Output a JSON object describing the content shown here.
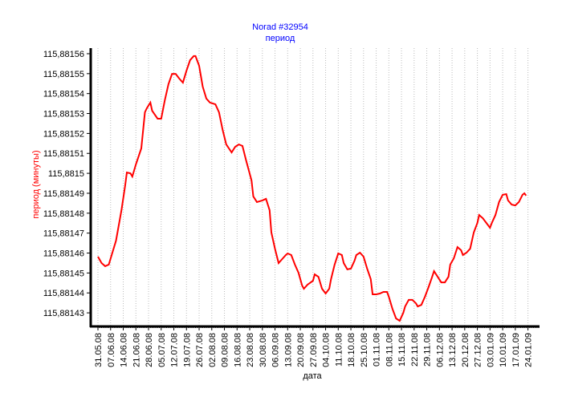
{
  "chart_data": {
    "type": "line",
    "title": "Norad #32954",
    "subtitle": "период",
    "xlabel": "дата",
    "ylabel": "период (минуты)",
    "title_color": "#0000ff",
    "ylabel_color": "#ff0000",
    "line_color": "#ff0000",
    "grid": "vertical dotted",
    "x_unit": "days since 31.05.08",
    "xlim": [
      -4,
      244.4
    ],
    "ylim": [
      115.8814232,
      115.8815628
    ],
    "x_ticks": [
      0,
      7,
      14,
      21,
      28,
      35,
      42,
      49,
      56,
      63,
      70,
      77,
      84,
      91,
      98,
      105,
      112,
      119,
      126,
      133,
      140,
      147,
      154,
      161,
      168,
      175,
      182,
      189,
      196,
      203,
      210,
      217,
      224,
      231,
      238
    ],
    "x_tick_labels": [
      "31.05.08",
      "07.06.08",
      "14.06.08",
      "21.06.08",
      "28.06.08",
      "05.07.08",
      "12.07.08",
      "19.07.08",
      "26.07.08",
      "02.08.08",
      "09.08.08",
      "16.08.08",
      "23.08.08",
      "30.08.08",
      "06.09.08",
      "13.09.08",
      "20.09.08",
      "27.09.08",
      "04.10.08",
      "11.10.08",
      "18.10.08",
      "25.10.08",
      "01.11.08",
      "08.11.08",
      "15.11.08",
      "22.11.08",
      "29.11.08",
      "06.12.08",
      "13.12.08",
      "20.12.08",
      "27.12.08",
      "03.01.09",
      "10.01.09",
      "17.01.09",
      "24.01.09"
    ],
    "y_ticks": [
      115.88156,
      115.88155,
      115.88154,
      115.88153,
      115.88152,
      115.88151,
      115.8815,
      115.88149,
      115.88148,
      115.88147,
      115.88146,
      115.88145,
      115.88144,
      115.88143
    ],
    "y_tick_labels": [
      "115,88156",
      "115,88155",
      "115,88154",
      "115,88153",
      "115,88152",
      "115,88151",
      "115,8815",
      "115,88149",
      "115,88148",
      "115,88147",
      "115,88146",
      "115,88145",
      "115,88144",
      "115,88143"
    ],
    "series": [
      {
        "name": "период",
        "x": [
          0,
          2,
          4,
          6,
          8,
          10,
          13,
          15,
          16,
          18,
          19,
          21,
          24,
          26,
          27,
          29,
          30,
          33,
          35,
          37,
          39,
          41,
          43,
          45,
          47,
          49,
          51,
          53,
          54,
          56,
          58,
          60,
          62,
          65,
          67,
          69,
          71,
          74,
          76,
          78,
          80,
          82,
          85,
          86,
          88,
          91,
          93,
          95,
          96,
          98,
          100,
          102,
          104,
          105,
          107,
          109,
          111,
          113,
          114,
          116,
          119,
          120,
          122,
          124,
          126,
          128,
          129,
          131,
          133,
          135,
          136,
          138,
          140,
          142,
          143,
          145,
          147,
          149,
          151,
          152,
          154,
          156,
          158,
          160,
          161,
          163,
          165,
          167,
          169,
          170,
          172,
          174,
          176,
          177,
          179,
          181,
          183,
          185,
          186,
          188,
          190,
          192,
          194,
          195,
          197,
          199,
          201,
          202,
          204,
          206,
          208,
          210,
          211,
          213,
          215,
          217,
          218,
          220,
          222,
          224,
          226,
          227,
          229,
          231,
          233,
          235,
          236,
          237
        ],
        "values": [
          115.8814582,
          115.881455,
          115.8814534,
          115.8814542,
          115.8814602,
          115.8814662,
          115.8814815,
          115.8814936,
          115.8815004,
          115.8815,
          115.8814984,
          115.8815045,
          115.8815125,
          115.8815306,
          115.8815326,
          115.8815355,
          115.8815314,
          115.8815274,
          115.8815274,
          115.8815367,
          115.8815447,
          115.8815499,
          115.8815499,
          115.8815475,
          115.8815455,
          115.8815515,
          115.8815568,
          115.8815588,
          115.8815588,
          115.881554,
          115.8815435,
          115.8815375,
          115.8815355,
          115.8815346,
          115.8815306,
          115.8815218,
          115.8815145,
          115.8815105,
          115.8815133,
          115.8815145,
          115.8815137,
          115.8815065,
          115.8814964,
          115.8814884,
          115.8814856,
          115.8814864,
          115.8814872,
          115.8814815,
          115.8814703,
          115.8814622,
          115.881455,
          115.881457,
          115.881459,
          115.8814598,
          115.881459,
          115.8814542,
          115.8814501,
          115.8814437,
          115.8814421,
          115.8814441,
          115.8814461,
          115.8814493,
          115.8814481,
          115.8814421,
          115.8814397,
          115.8814421,
          115.8814469,
          115.8814542,
          115.8814598,
          115.881459,
          115.881455,
          115.8814518,
          115.8814522,
          115.8814562,
          115.881459,
          115.8814602,
          115.8814582,
          115.8814522,
          115.8814469,
          115.8814393,
          115.8814393,
          115.8814397,
          115.8814405,
          115.8814405,
          115.8814381,
          115.881432,
          115.8814272,
          115.881426,
          115.88143,
          115.8814332,
          115.8814365,
          115.8814365,
          115.8814348,
          115.8814332,
          115.881434,
          115.8814381,
          115.8814429,
          115.8814481,
          115.8814509,
          115.8814481,
          115.8814453,
          115.8814453,
          115.8814481,
          115.8814542,
          115.8814574,
          115.881463,
          115.8814614,
          115.881459,
          115.8814602,
          115.8814622,
          115.8814703,
          115.8814751,
          115.8814791,
          115.8814775,
          115.8814751,
          115.8814727,
          115.8814751,
          115.8814791,
          115.8814856,
          115.8814892,
          115.8814896,
          115.8814864,
          115.8814843,
          115.8814839,
          115.8814856,
          115.8814892,
          115.88149,
          115.8814888
        ]
      }
    ]
  }
}
